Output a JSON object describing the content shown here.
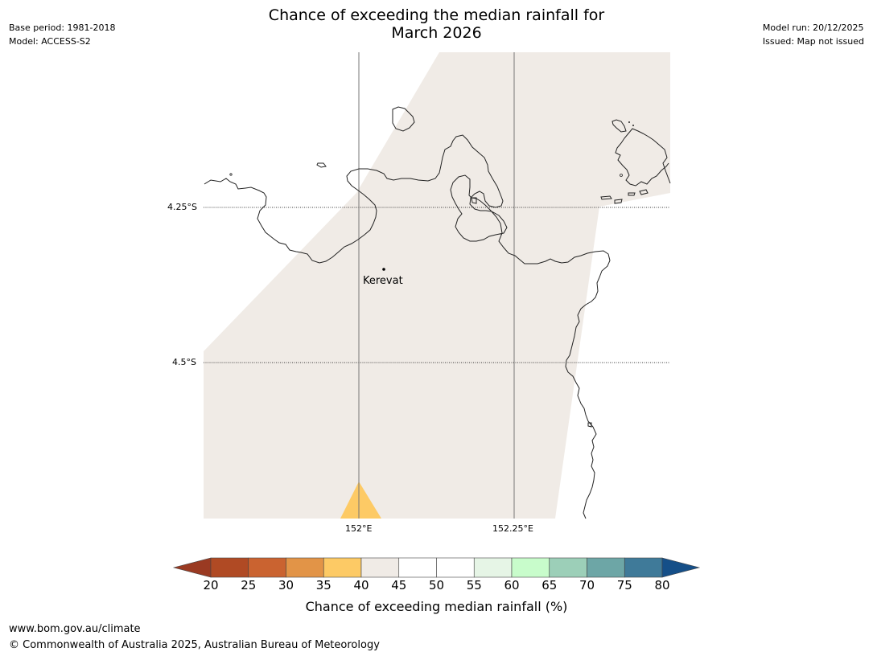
{
  "title_line1": "Chance of exceeding the median rainfall for",
  "title_line2": "March 2026",
  "meta_left": {
    "base_period": "Base period: 1981-2018",
    "model": "Model: ACCESS-S2"
  },
  "meta_right": {
    "model_run": "Model run: 20/12/2025",
    "issued": "Issued: Map not issued"
  },
  "map": {
    "place": "Kerevat",
    "lat_labels": [
      "4.25°S",
      "4.5°S"
    ],
    "lon_labels": [
      "152°E",
      "152.25°E"
    ],
    "colors": {
      "land_fill": "#f0ebe6",
      "sea": "#ffffff",
      "category_35_40": "#fdca65",
      "coastline": "#222222"
    }
  },
  "colorbar": {
    "ticks": [
      "20",
      "25",
      "30",
      "35",
      "40",
      "45",
      "50",
      "55",
      "60",
      "65",
      "70",
      "75",
      "80"
    ],
    "colors": [
      "#9a3a22",
      "#b04a24",
      "#ca6330",
      "#e29447",
      "#fdca65",
      "#f0ebe6",
      "#ffffff",
      "#ffffff",
      "#e6f5e6",
      "#c8fccb",
      "#9ccfb8",
      "#6da6a6",
      "#3f7a99",
      "#154f88"
    ],
    "label": "Chance of exceeding median rainfall (%)"
  },
  "footer": {
    "url": "www.bom.gov.au/climate",
    "copyright": "© Commonwealth of Australia 2025, Australian Bureau of Meteorology"
  }
}
